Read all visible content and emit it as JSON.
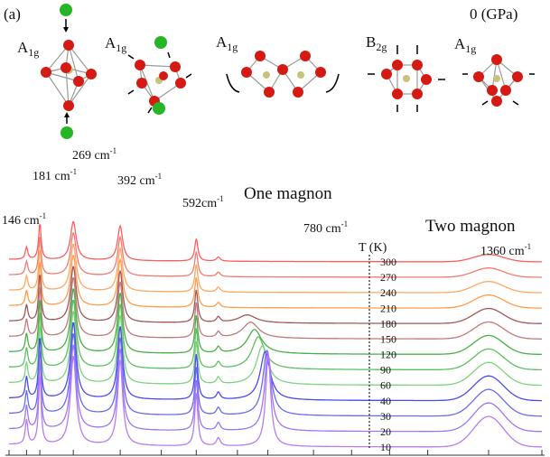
{
  "panel_label": "(a)",
  "pressure_label": "0 (GPa)",
  "modes": [
    {
      "symbol": "A",
      "subscript": "1g"
    },
    {
      "symbol": "A",
      "subscript": "1g"
    },
    {
      "symbol": "A",
      "subscript": "1g"
    },
    {
      "symbol": "B",
      "subscript": "2g"
    },
    {
      "symbol": "A",
      "subscript": "1g"
    }
  ],
  "peak_labels": [
    {
      "text": "146 cm",
      "sup": "-1"
    },
    {
      "text": "181 cm",
      "sup": "-1"
    },
    {
      "text": "269 cm",
      "sup": "-1"
    },
    {
      "text": "392 cm",
      "sup": "-1"
    },
    {
      "text": "592cm",
      "sup": "-1"
    },
    {
      "text": "780 cm",
      "sup": "-1"
    },
    {
      "text": "1360 cm",
      "sup": "-1"
    }
  ],
  "annotations": {
    "one_magnon": "One magnon",
    "two_magnon": "Two magnon",
    "temp_axis_label": "T (K)"
  },
  "colors": {
    "atom_red": "#d41a12",
    "atom_green": "#25b525",
    "atom_center": "#c9c27a"
  },
  "chart_data": {
    "type": "line",
    "xlabel": "",
    "ylabel": "",
    "x_range_cm1": [
      100,
      1500
    ],
    "tick_values_cm1": [
      100,
      146,
      181,
      269,
      392,
      500,
      592,
      700,
      780,
      900,
      1000,
      1100,
      1200,
      1360,
      1500
    ],
    "temperatures_K": [
      300,
      270,
      240,
      210,
      180,
      150,
      120,
      90,
      60,
      40,
      30,
      20,
      10
    ],
    "series_colors": [
      "#ff5d5d",
      "#f37b72",
      "#ffa860",
      "#ff9d4a",
      "#a25757",
      "#c07a7a",
      "#49b049",
      "#5fc05f",
      "#7fd37f",
      "#4a4af2",
      "#6a6af2",
      "#9b77f2",
      "#b67cf2"
    ],
    "phonon_peaks": [
      {
        "pos": 146,
        "width": 4,
        "amp_300": 30,
        "amp_10": 60
      },
      {
        "pos": 181,
        "width": 4,
        "amp_300": 90,
        "amp_10": 175
      },
      {
        "pos": 269,
        "width": 9,
        "amp_300": 95,
        "amp_10": 220
      },
      {
        "pos": 392,
        "width": 8,
        "amp_300": 85,
        "amp_10": 210
      },
      {
        "pos": 592,
        "width": 5,
        "amp_300": 55,
        "amp_10": 130
      },
      {
        "pos": 650,
        "width": 6,
        "amp_300": 10,
        "amp_10": 20
      }
    ],
    "one_magnon": {
      "positions_cm1": [
        null,
        null,
        null,
        null,
        726,
        735,
        745,
        755,
        765,
        773,
        778,
        780,
        781
      ],
      "amplitudes": [
        0,
        0,
        0,
        0,
        20,
        40,
        60,
        80,
        95,
        120,
        160,
        190,
        225
      ]
    },
    "two_magnon": {
      "pos": 1360,
      "width": 55,
      "amp_300": 18,
      "amp_10": 75
    }
  }
}
